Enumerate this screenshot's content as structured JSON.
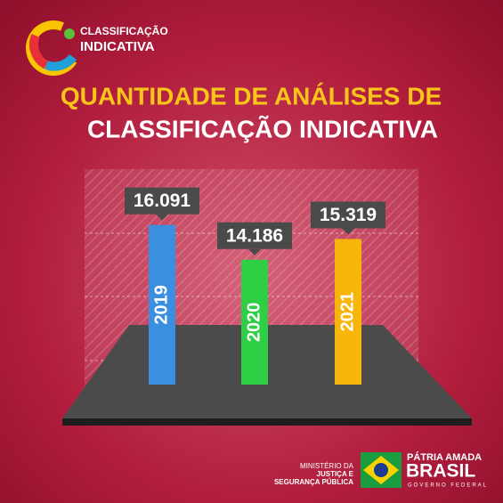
{
  "logo": {
    "line1": "CLASSIFICAÇÃO",
    "line2": "INDICATIVA"
  },
  "chart_data": {
    "type": "bar",
    "title": "QUANTIDADE DE ANÁLISES DE",
    "subtitle": "CLASSIFICAÇÃO INDICATIVA",
    "categories": [
      "2019",
      "2020",
      "2021"
    ],
    "values": [
      16091,
      14186,
      15319
    ],
    "value_labels": [
      "16.091",
      "14.186",
      "15.319"
    ],
    "colors": [
      "#3b8fe0",
      "#2fcf45",
      "#f8b60c"
    ],
    "ylim": [
      7350,
      17000
    ]
  },
  "footer": {
    "ministry": [
      "MINISTÉRIO DA",
      "JUSTIÇA E",
      "SEGURANÇA PÚBLICA"
    ],
    "brand1": "PÁTRIA AMADA",
    "brand2": "BRASIL",
    "brand3": "GOVERNO FEDERAL"
  }
}
